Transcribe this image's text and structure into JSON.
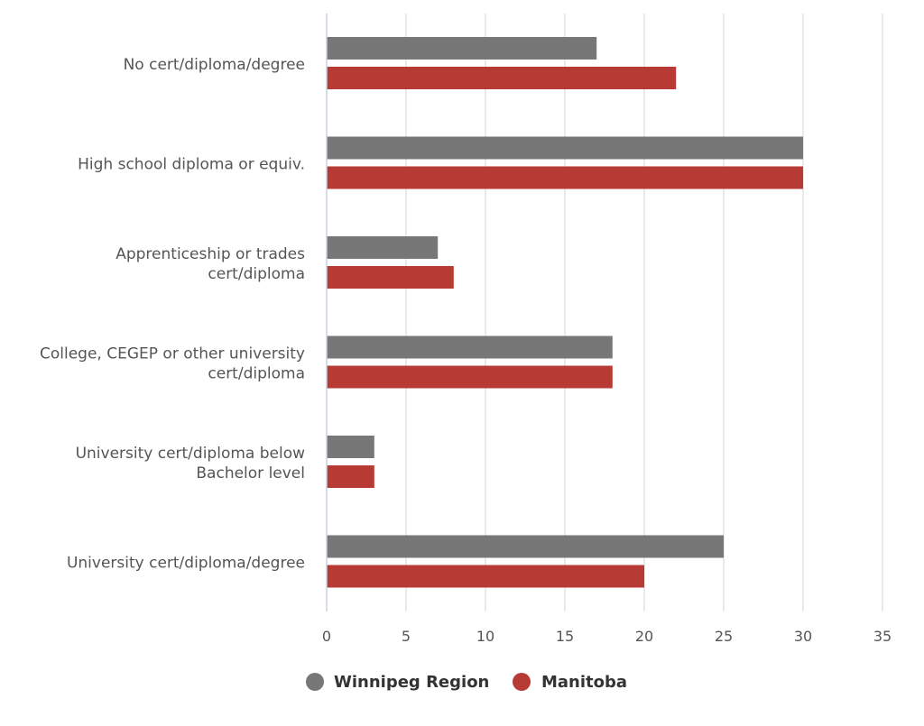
{
  "chart_data": {
    "type": "bar",
    "orientation": "horizontal",
    "categories": [
      [
        "No cert/diploma/degree"
      ],
      [
        "High school diploma or equiv."
      ],
      [
        "Apprenticeship or trades",
        "cert/diploma"
      ],
      [
        "College, CEGEP or other university",
        "cert/diploma"
      ],
      [
        "University cert/diploma below",
        "Bachelor level"
      ],
      [
        "University cert/diploma/degree"
      ]
    ],
    "series": [
      {
        "name": "Winnipeg Region",
        "color": "#777777",
        "values": [
          17,
          30,
          7,
          18,
          3,
          25
        ]
      },
      {
        "name": "Manitoba",
        "color": "#b73a35",
        "values": [
          22,
          30,
          8,
          18,
          3,
          20
        ]
      }
    ],
    "x_ticks": [
      "0",
      "5",
      "10",
      "15",
      "20",
      "25",
      "30",
      "35"
    ],
    "xlim": [
      0,
      35
    ],
    "grid": true,
    "legend_position": "bottom-center"
  }
}
